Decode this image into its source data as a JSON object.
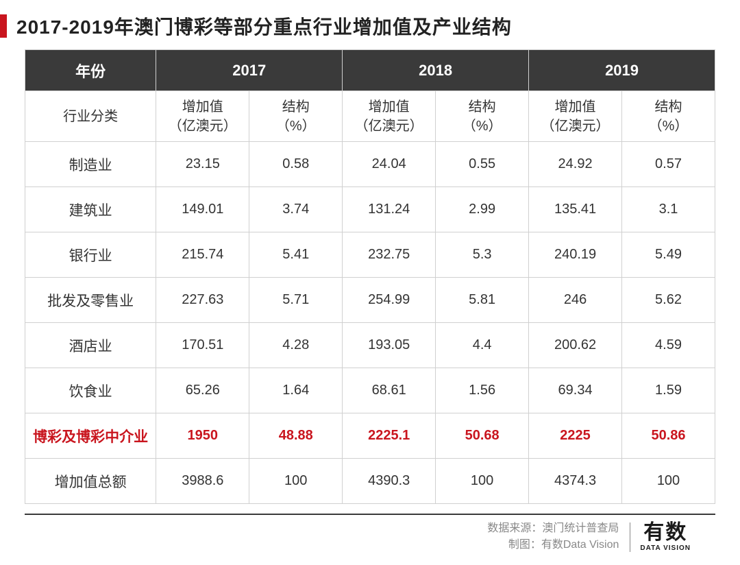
{
  "title": "2017-2019年澳门博彩等部分重点行业增加值及产业结构",
  "colors": {
    "accent": "#c9151e",
    "header_bg": "#3a3a3a",
    "header_text": "#ffffff",
    "border": "#d0d0d0",
    "text": "#333333",
    "highlight": "#c9151e",
    "footer_text": "#888888"
  },
  "table": {
    "years": [
      "2017",
      "2018",
      "2019"
    ],
    "corner_label": "年份",
    "industry_header": "行业分类",
    "sub_value_label": "增加值\n（亿澳元）",
    "sub_pct_label": "结构\n（%）",
    "rows": [
      {
        "label": "制造业",
        "highlight": false,
        "values": [
          "23.15",
          "0.58",
          "24.04",
          "0.55",
          "24.92",
          "0.57"
        ]
      },
      {
        "label": "建筑业",
        "highlight": false,
        "values": [
          "149.01",
          "3.74",
          "131.24",
          "2.99",
          "135.41",
          "3.1"
        ]
      },
      {
        "label": "银行业",
        "highlight": false,
        "values": [
          "215.74",
          "5.41",
          "232.75",
          "5.3",
          "240.19",
          "5.49"
        ]
      },
      {
        "label": "批发及零售业",
        "highlight": false,
        "values": [
          "227.63",
          "5.71",
          "254.99",
          "5.81",
          "246",
          "5.62"
        ]
      },
      {
        "label": "酒店业",
        "highlight": false,
        "values": [
          "170.51",
          "4.28",
          "193.05",
          "4.4",
          "200.62",
          "4.59"
        ]
      },
      {
        "label": "饮食业",
        "highlight": false,
        "values": [
          "65.26",
          "1.64",
          "68.61",
          "1.56",
          "69.34",
          "1.59"
        ]
      },
      {
        "label": "博彩及博彩中介业",
        "highlight": true,
        "values": [
          "1950",
          "48.88",
          "2225.1",
          "50.68",
          "2225",
          "50.86"
        ]
      },
      {
        "label": "增加值总额",
        "highlight": false,
        "values": [
          "3988.6",
          "100",
          "4390.3",
          "100",
          "4374.3",
          "100"
        ]
      }
    ]
  },
  "footer": {
    "source_label": "数据来源：",
    "source_value": "澳门统计普查局",
    "credit_label": "制图：",
    "credit_value": "有数Data Vision",
    "logo_cn": "有数",
    "logo_en": "DATA VISION"
  }
}
